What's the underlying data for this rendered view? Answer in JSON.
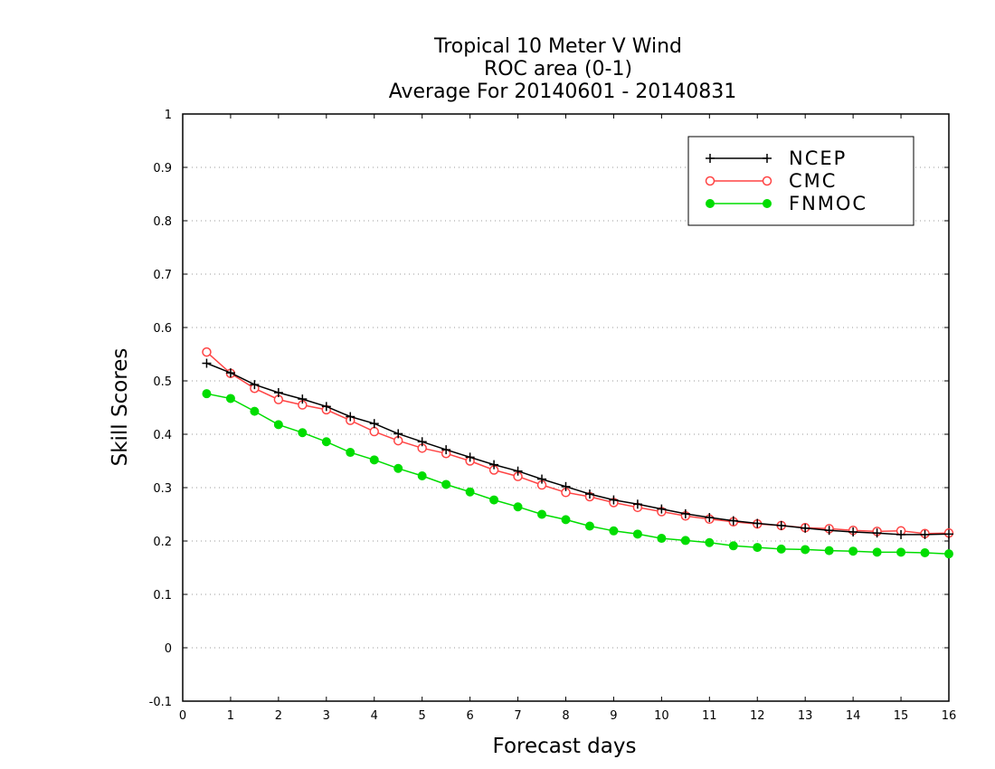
{
  "chart_data": {
    "type": "line",
    "title_lines": [
      "Tropical 10 Meter V Wind",
      "ROC area (0-1)",
      "Average For 20140601 - 20140831"
    ],
    "xlabel": "Forecast days",
    "ylabel": "Skill Scores",
    "xlim": [
      0,
      16
    ],
    "ylim": [
      -0.1,
      1
    ],
    "xticks": [
      0,
      1,
      2,
      3,
      4,
      5,
      6,
      7,
      8,
      9,
      10,
      11,
      12,
      13,
      14,
      15,
      16
    ],
    "yticks": [
      -0.1,
      0,
      0.1,
      0.2,
      0.3,
      0.4,
      0.5,
      0.6,
      0.7,
      0.8,
      0.9,
      1
    ],
    "ytick_labels": [
      "-0.1",
      "0",
      "0.1",
      "0.2",
      "0.3",
      "0.4",
      "0.5",
      "0.6",
      "0.7",
      "0.8",
      "0.9",
      "1"
    ],
    "grid": "horizontal dotted",
    "legend_position": "top-right",
    "x": [
      0.5,
      1,
      1.5,
      2,
      2.5,
      3,
      3.5,
      4,
      4.5,
      5,
      5.5,
      6,
      6.5,
      7,
      7.5,
      8,
      8.5,
      9,
      9.5,
      10,
      10.5,
      11,
      11.5,
      12,
      12.5,
      13,
      13.5,
      14,
      14.5,
      15,
      15.5,
      16
    ],
    "series": [
      {
        "name": "NCEP",
        "color": "#000000",
        "marker": "plus",
        "values": [
          0.533,
          0.515,
          0.493,
          0.478,
          0.466,
          0.452,
          0.433,
          0.42,
          0.401,
          0.386,
          0.371,
          0.357,
          0.343,
          0.331,
          0.316,
          0.302,
          0.288,
          0.277,
          0.269,
          0.26,
          0.251,
          0.244,
          0.238,
          0.233,
          0.229,
          0.224,
          0.22,
          0.217,
          0.215,
          0.212,
          0.212,
          0.213
        ]
      },
      {
        "name": "CMC",
        "color": "#ff4444",
        "marker": "open-circle",
        "values": [
          0.554,
          0.514,
          0.486,
          0.465,
          0.455,
          0.446,
          0.426,
          0.405,
          0.388,
          0.374,
          0.364,
          0.35,
          0.333,
          0.321,
          0.305,
          0.291,
          0.283,
          0.272,
          0.263,
          0.255,
          0.247,
          0.241,
          0.236,
          0.232,
          0.229,
          0.225,
          0.223,
          0.22,
          0.218,
          0.219,
          0.214,
          0.215
        ]
      },
      {
        "name": "FNMOC",
        "color": "#00dd00",
        "marker": "filled-circle",
        "values": [
          0.476,
          0.467,
          0.443,
          0.418,
          0.403,
          0.386,
          0.366,
          0.352,
          0.336,
          0.322,
          0.306,
          0.292,
          0.277,
          0.264,
          0.25,
          0.24,
          0.228,
          0.219,
          0.213,
          0.205,
          0.201,
          0.197,
          0.191,
          0.188,
          0.185,
          0.184,
          0.182,
          0.181,
          0.179,
          0.179,
          0.178,
          0.176
        ]
      }
    ]
  }
}
